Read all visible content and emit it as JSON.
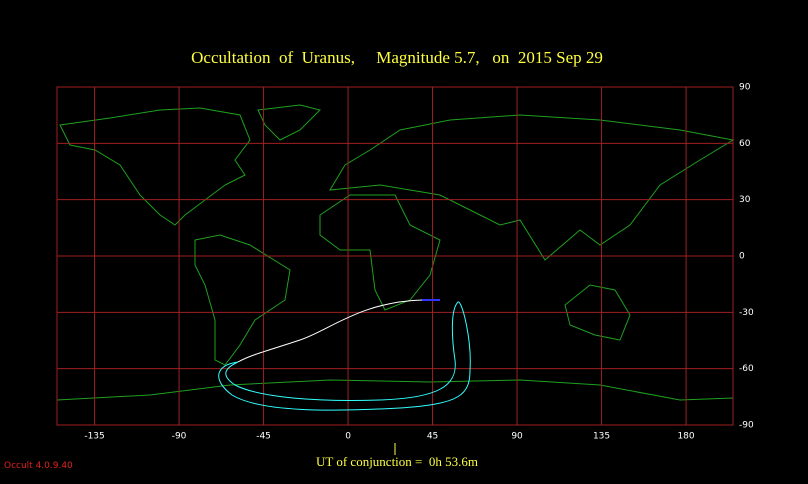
{
  "map": {
    "title": "Occultation  of  Uranus,     Magnitude 5.7,   on  2015 Sep 29",
    "xlim": [
      -155,
      205
    ],
    "ylim": [
      -90,
      90
    ],
    "xticks": [
      -135,
      -90,
      -45,
      0,
      45,
      90,
      135,
      180
    ],
    "yticks": [
      90,
      60,
      30,
      0,
      -30,
      -60,
      -90
    ],
    "conjunction": "UT of conjunction =  0h 53.6m",
    "version": "Occult 4.0.9.40"
  }
}
